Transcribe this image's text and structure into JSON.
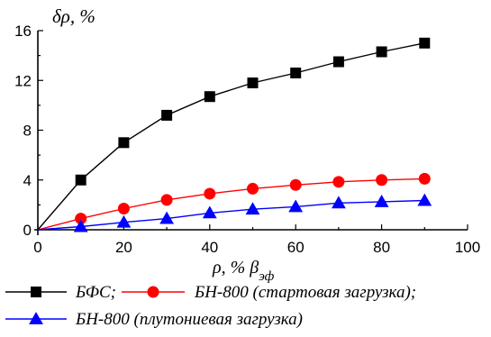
{
  "chart_data": {
    "type": "line",
    "ylabel": "δρ, %",
    "xlabel": {
      "main": "ρ, % β",
      "sub": "эф"
    },
    "xlim": [
      0,
      100
    ],
    "ylim": [
      0,
      16
    ],
    "xticks": [
      "0",
      "20",
      "40",
      "60",
      "80",
      "100"
    ],
    "yticks": [
      "0",
      "4",
      "8",
      "12",
      "16"
    ],
    "x": [
      0,
      10,
      20,
      30,
      40,
      50,
      60,
      70,
      80,
      90
    ],
    "grid": false,
    "legend": "bottom",
    "series": [
      {
        "name": "БФС;",
        "marker": "square",
        "color": "#000000",
        "values": [
          0,
          4.0,
          7.0,
          9.2,
          10.7,
          11.8,
          12.6,
          13.5,
          14.3,
          15.0
        ]
      },
      {
        "name": "БН-800 (стартовая загрузка);",
        "marker": "circle",
        "color": "#ff0000",
        "values": [
          0,
          0.9,
          1.7,
          2.4,
          2.9,
          3.3,
          3.6,
          3.85,
          4.0,
          4.1
        ]
      },
      {
        "name": "БН-800 (плутониевая загрузка)",
        "marker": "triangle",
        "color": "#0000ff",
        "values": [
          0,
          0.25,
          0.6,
          0.9,
          1.35,
          1.65,
          1.85,
          2.15,
          2.25,
          2.35
        ]
      }
    ]
  }
}
